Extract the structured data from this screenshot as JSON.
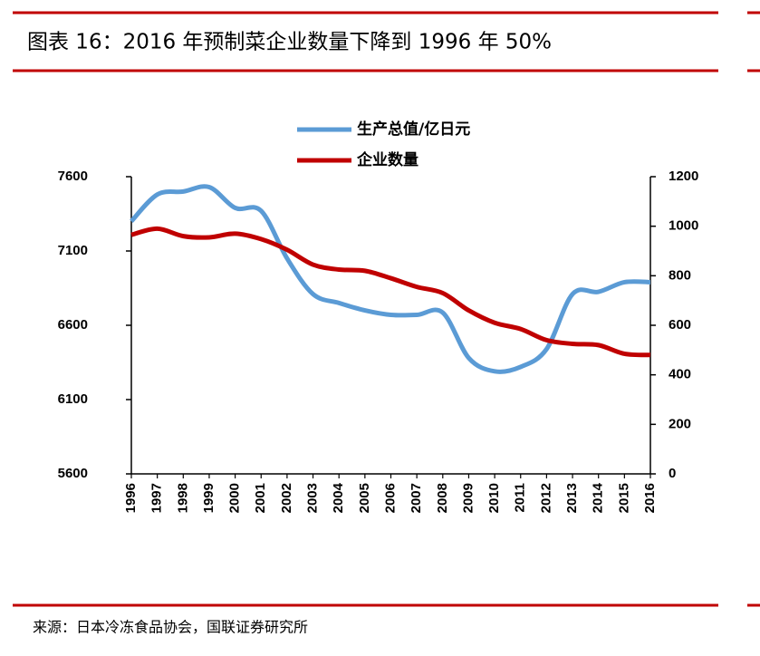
{
  "chart_data": {
    "type": "line",
    "title": "图表 16：2016 年预制菜企业数量下降到 1996 年 50%",
    "source": "来源：日本冷冻食品协会，国联证券研究所",
    "categories": [
      "1996",
      "1997",
      "1998",
      "1999",
      "2000",
      "2001",
      "2002",
      "2003",
      "2004",
      "2005",
      "2006",
      "2007",
      "2008",
      "2009",
      "2010",
      "2011",
      "2012",
      "2013",
      "2014",
      "2015",
      "2016"
    ],
    "series": [
      {
        "name": "生产总值/亿日元",
        "color": "#5b9bd5",
        "axis": "y",
        "values": [
          7300,
          7480,
          7500,
          7530,
          7390,
          7370,
          7050,
          6810,
          6750,
          6700,
          6670,
          6670,
          6685,
          6380,
          6290,
          6320,
          6440,
          6810,
          6825,
          6890,
          6890
        ]
      },
      {
        "name": "企业数量",
        "color": "#c00000",
        "axis": "y2",
        "values": [
          965,
          990,
          960,
          955,
          970,
          948,
          905,
          845,
          825,
          820,
          790,
          755,
          730,
          660,
          610,
          585,
          540,
          525,
          520,
          485,
          480
        ]
      }
    ],
    "ylim": [
      5600,
      7600
    ],
    "yticks": [
      5600,
      6100,
      6600,
      7100,
      7600
    ],
    "y2lim": [
      0,
      1200
    ],
    "y2ticks": [
      0,
      200,
      400,
      600,
      800,
      1000,
      1200
    ]
  }
}
